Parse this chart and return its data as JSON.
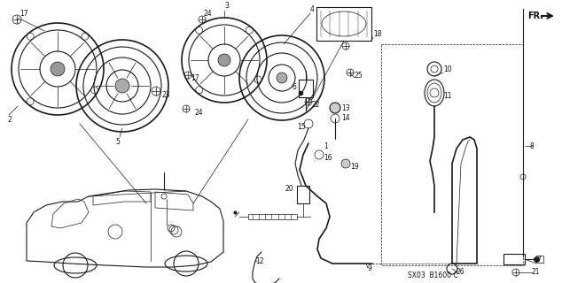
{
  "bg_color": "#ffffff",
  "diagram_code": "SX03  B1600 C",
  "fr_label": "FR.",
  "line_color": "#1a1a1a",
  "text_color": "#111111",
  "fig_w": 6.34,
  "fig_h": 3.2,
  "dpi": 100,
  "xmax": 634,
  "ymax": 320
}
